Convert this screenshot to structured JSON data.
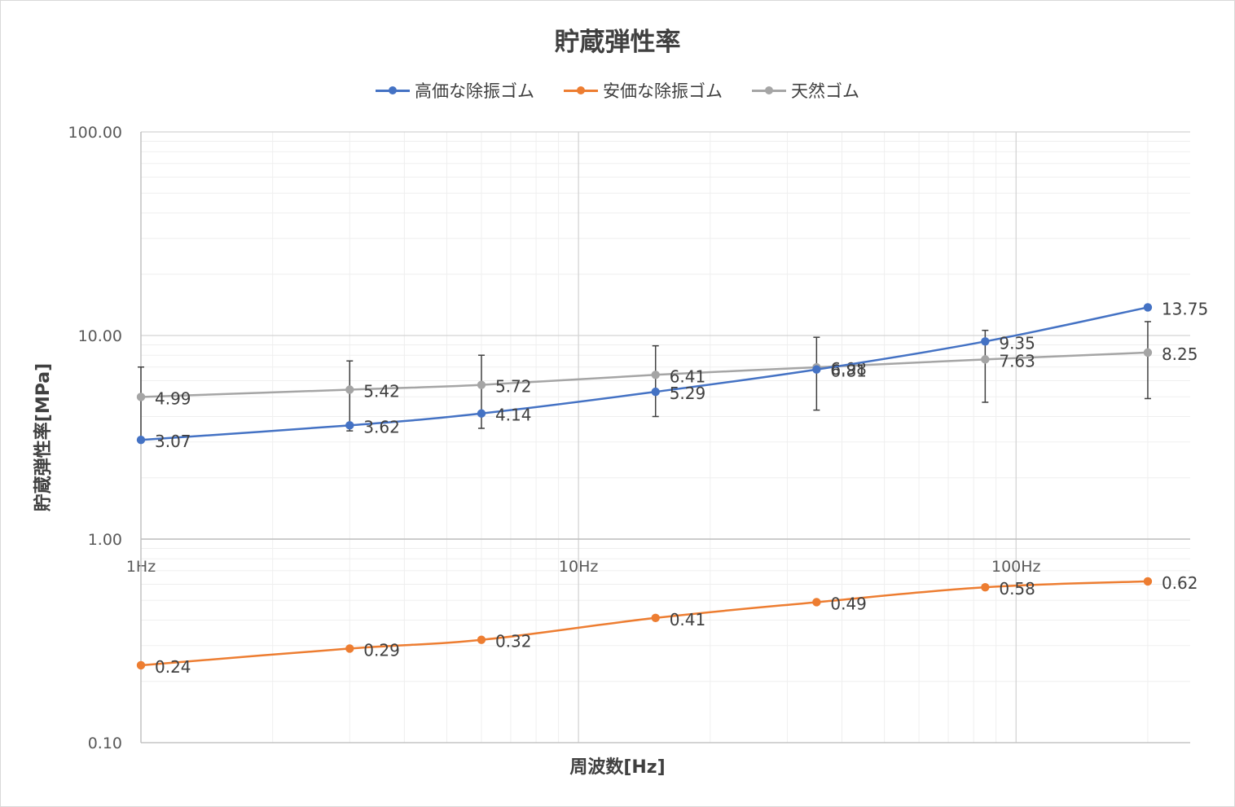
{
  "chart_data": {
    "type": "line",
    "title": "貯蔵弾性率",
    "xlabel": "周波数[Hz]",
    "ylabel": "貯蔵弾性率[MPa]",
    "x_scale": "log",
    "y_scale": "log",
    "x_range": [
      1,
      250
    ],
    "ylim": [
      0.1,
      100
    ],
    "y_ticks": [
      "0.10",
      "1.00",
      "10.00",
      "100.00"
    ],
    "x_ticks": [
      {
        "value": 1,
        "label": "1Hz"
      },
      {
        "value": 10,
        "label": "10Hz"
      },
      {
        "value": 100,
        "label": "100Hz"
      }
    ],
    "grid": true,
    "legend_position": "top",
    "x": [
      1,
      3,
      6,
      15,
      35,
      85,
      200
    ],
    "series": [
      {
        "name": "高価な除振ゴム",
        "color": "#4472c4",
        "values": [
          3.07,
          3.62,
          4.14,
          5.29,
          6.81,
          9.35,
          13.75
        ],
        "labels": [
          "3.07",
          "3.62",
          "4.14",
          "5.29",
          "6.81",
          "9.35",
          "13.75"
        ],
        "error_bars": false
      },
      {
        "name": "安価な除振ゴム",
        "color": "#ed7d31",
        "values": [
          0.24,
          0.29,
          0.32,
          0.41,
          0.49,
          0.58,
          0.62
        ],
        "labels": [
          "0.24",
          "0.29",
          "0.32",
          "0.41",
          "0.49",
          "0.58",
          "0.62"
        ],
        "error_bars": false
      },
      {
        "name": "天然ゴム",
        "color": "#a5a5a5",
        "values": [
          4.99,
          5.42,
          5.72,
          6.41,
          6.98,
          7.63,
          8.25
        ],
        "labels": [
          "4.99",
          "5.42",
          "5.72",
          "6.41",
          "6.98",
          "7.63",
          "8.25"
        ],
        "error_bars": true,
        "error_low": [
          3.0,
          3.4,
          3.5,
          4.0,
          4.3,
          4.7,
          4.9
        ],
        "error_high": [
          7.0,
          7.5,
          8.0,
          8.9,
          9.8,
          10.6,
          11.7
        ]
      }
    ]
  }
}
